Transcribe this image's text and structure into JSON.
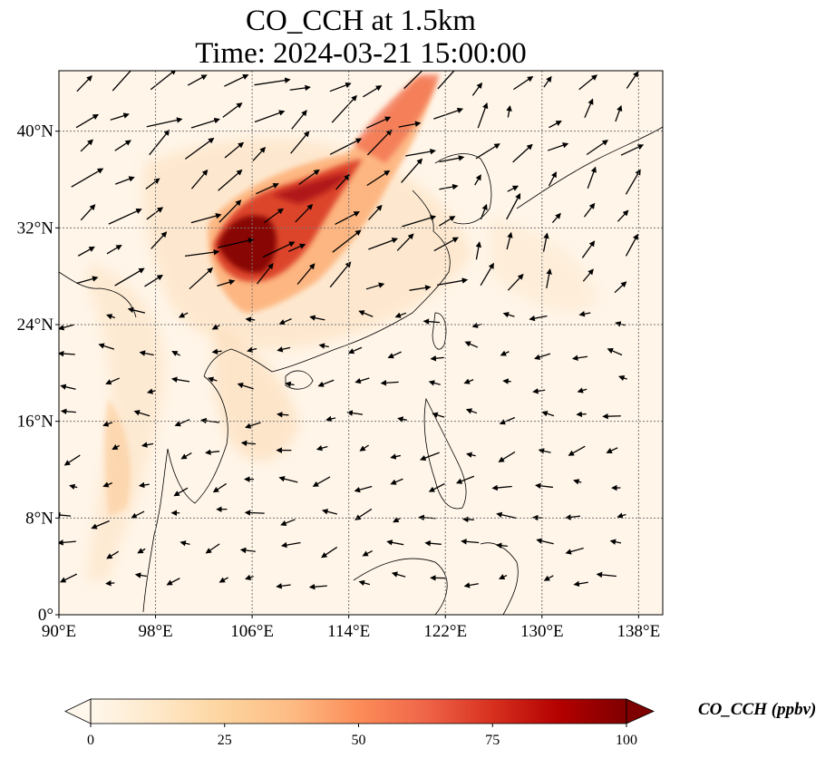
{
  "title": {
    "line1": "CO_CCH at 1.5km",
    "line2": "Time: 2024-03-21 15:00:00"
  },
  "map": {
    "lon_range": [
      90,
      140
    ],
    "lat_range": [
      0,
      45
    ],
    "lon_ticks": [
      {
        "value": 90,
        "label": "90°E"
      },
      {
        "value": 98,
        "label": "98°E"
      },
      {
        "value": 106,
        "label": "106°E"
      },
      {
        "value": 114,
        "label": "114°E"
      },
      {
        "value": 122,
        "label": "122°E"
      },
      {
        "value": 130,
        "label": "130°E"
      },
      {
        "value": 138,
        "label": "138°E"
      }
    ],
    "lat_ticks": [
      {
        "value": 0,
        "label": "0°"
      },
      {
        "value": 8,
        "label": "8°N"
      },
      {
        "value": 16,
        "label": "16°N"
      },
      {
        "value": 24,
        "label": "24°N"
      },
      {
        "value": 32,
        "label": "32°N"
      },
      {
        "value": 40,
        "label": "40°N"
      }
    ],
    "gridlines": true,
    "colormap": "OrRd",
    "background_color": "#fff5e8"
  },
  "colorbar": {
    "title": "CO_CCH (ppbv)",
    "ticks": [
      {
        "value": 0,
        "label": "0"
      },
      {
        "value": 25,
        "label": "25"
      },
      {
        "value": 50,
        "label": "50"
      },
      {
        "value": 75,
        "label": "75"
      },
      {
        "value": 100,
        "label": "100"
      }
    ],
    "range": [
      0,
      100
    ],
    "extend": "both",
    "colors": [
      "#fff7ec",
      "#fee8c8",
      "#fdd49e",
      "#fdbb84",
      "#fc8d59",
      "#ef6548",
      "#d7301f",
      "#b30000",
      "#7f0000"
    ]
  }
}
